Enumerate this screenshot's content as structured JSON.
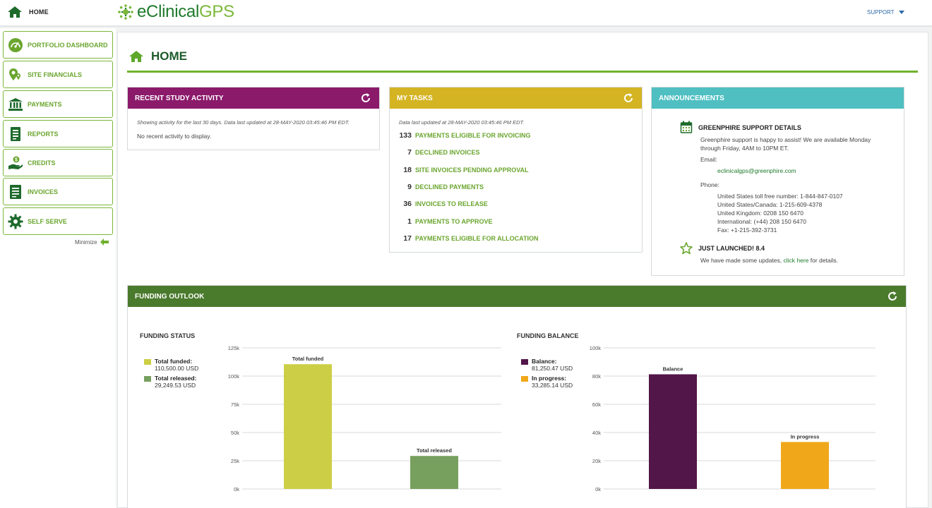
{
  "topbar": {
    "home_label": "HOME",
    "brand_part1": "eClinical",
    "brand_part2": "GPS",
    "support_label": "SUPPORT"
  },
  "sidebar": {
    "items": [
      {
        "label": "PORTFOLIO DASHBOARD",
        "icon": "gauge-icon"
      },
      {
        "label": "SITE FINANCIALS",
        "icon": "map-pin-icon"
      },
      {
        "label": "PAYMENTS",
        "icon": "bank-icon"
      },
      {
        "label": "REPORTS",
        "icon": "report-icon"
      },
      {
        "label": "CREDITS",
        "icon": "hand-coin-icon"
      },
      {
        "label": "INVOICES",
        "icon": "invoice-icon"
      },
      {
        "label": "SELF SERVE",
        "icon": "gear-icon"
      }
    ],
    "minimize_label": "Minimize"
  },
  "page": {
    "title": "HOME"
  },
  "recent_activity": {
    "title": "RECENT STUDY ACTIVITY",
    "color": "#8b1a6b",
    "note": "Showing activity for the last 30 days. Data last updated at 28-MAY-2020 03:45:46 PM EDT.",
    "empty_text": "No recent activity to display."
  },
  "my_tasks": {
    "title": "MY TASKS",
    "color": "#d4b423",
    "note": "Data last updated at 28-MAY-2020 03:45:46 PM EDT.",
    "items": [
      {
        "count": "133",
        "label": "PAYMENTS ELIGIBLE FOR INVOICING"
      },
      {
        "count": "7",
        "label": "DECLINED INVOICES"
      },
      {
        "count": "18",
        "label": "SITE INVOICES PENDING APPROVAL"
      },
      {
        "count": "9",
        "label": "DECLINED PAYMENTS"
      },
      {
        "count": "36",
        "label": "INVOICES TO RELEASE"
      },
      {
        "count": "1",
        "label": "PAYMENTS TO APPROVE"
      },
      {
        "count": "17",
        "label": "PAYMENTS ELIGIBLE FOR ALLOCATION"
      }
    ]
  },
  "announcements": {
    "title": "ANNOUNCEMENTS",
    "color": "#4fbfc2",
    "support": {
      "title": "GREENPHIRE SUPPORT DETAILS",
      "line1": "Greenphire support is happy to assist! We are available Monday",
      "line2": "through Friday, 4AM to 10PM ET.",
      "email_label": "Email:",
      "email": "eclinicalgps@greenphire.com",
      "phone_label": "Phone:",
      "phones": [
        "United States toll free number: 1-844-847-0107",
        "United States/Canada: 1-215-609-4378",
        "United Kingdom: 0208 150 6470",
        "International: (+44) 208 150 6470",
        "Fax: +1-215-392-3731"
      ]
    },
    "launch": {
      "title": "JUST LAUNCHED! 8.4",
      "text_before": "We have made some updates, ",
      "link": "click here",
      "text_after": " for details."
    }
  },
  "funding": {
    "title": "FUNDING OUTLOOK",
    "color": "#4a7a2c",
    "status": {
      "title": "FUNDING STATUS",
      "legend": [
        {
          "label": "Total funded",
          "value": "110,500.00 USD",
          "color": "#cccf45"
        },
        {
          "label": "Total released",
          "value": "29,249.53 USD",
          "color": "#77a05f"
        }
      ]
    },
    "balance": {
      "title": "FUNDING BALANCE",
      "legend": [
        {
          "label": "Balance",
          "value": "81,250.47 USD",
          "color": "#521649"
        },
        {
          "label": "In progress",
          "value": "33,285.14 USD",
          "color": "#f0a81a"
        }
      ]
    }
  },
  "chart_data": [
    {
      "type": "bar",
      "title": "FUNDING STATUS",
      "categories": [
        "Total funded",
        "Total released"
      ],
      "values": [
        110500.0,
        29249.53
      ],
      "colors": [
        "#cccf45",
        "#77a05f"
      ],
      "ylim": [
        0,
        125000
      ],
      "yticks": [
        0,
        25000,
        50000,
        75000,
        100000,
        125000
      ],
      "ytick_labels": [
        "0k",
        "25k",
        "50k",
        "75k",
        "100k",
        "125k"
      ],
      "grid": true
    },
    {
      "type": "bar",
      "title": "FUNDING BALANCE",
      "categories": [
        "Balance",
        "In progress"
      ],
      "values": [
        81250.47,
        33285.14
      ],
      "colors": [
        "#521649",
        "#f0a81a"
      ],
      "ylim": [
        0,
        100000
      ],
      "yticks": [
        0,
        20000,
        40000,
        60000,
        80000,
        100000
      ],
      "ytick_labels": [
        "0k",
        "20k",
        "40k",
        "60k",
        "80k",
        "100k"
      ],
      "grid": true
    }
  ]
}
